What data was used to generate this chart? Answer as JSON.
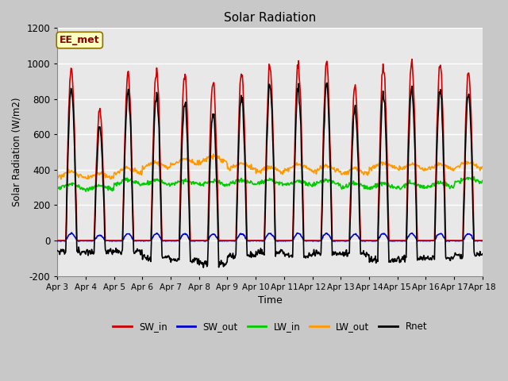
{
  "title": "Solar Radiation",
  "xlabel": "Time",
  "ylabel": "Solar Radiation (W/m2)",
  "ylim": [
    -200,
    1200
  ],
  "xlim": [
    0,
    360
  ],
  "fig_bg_color": "#c8c8c8",
  "plot_bg_color": "#e8e8e8",
  "grid_color": "#ffffff",
  "series": {
    "SW_in": {
      "color": "#cc0000",
      "lw": 1.2
    },
    "SW_out": {
      "color": "#0000cc",
      "lw": 1.2
    },
    "LW_in": {
      "color": "#00cc00",
      "lw": 1.2
    },
    "LW_out": {
      "color": "#ff9900",
      "lw": 1.2
    },
    "Rnet": {
      "color": "#000000",
      "lw": 1.2
    }
  },
  "xtick_labels": [
    "Apr 3",
    "Apr 4",
    "Apr 5",
    "Apr 6",
    "Apr 7",
    "Apr 8",
    "Apr 9",
    "Apr 10",
    "Apr 11",
    "Apr 12",
    "Apr 13",
    "Apr 14",
    "Apr 15",
    "Apr 16",
    "Apr 17",
    "Apr 18"
  ],
  "xtick_positions": [
    0,
    24,
    48,
    72,
    96,
    120,
    144,
    168,
    192,
    216,
    240,
    264,
    288,
    312,
    336,
    360
  ],
  "ytick_labels": [
    "-200",
    "0",
    "200",
    "400",
    "600",
    "800",
    "1000",
    "1200"
  ],
  "ytick_positions": [
    -200,
    0,
    200,
    400,
    600,
    800,
    1000,
    1200
  ],
  "annotation_text": "EE_met",
  "n_days": 15,
  "pts_per_day": 48,
  "sw_in_peaks": [
    980,
    730,
    940,
    950,
    940,
    880,
    950,
    990,
    990,
    990,
    870,
    980,
    1000,
    1000,
    950
  ],
  "lw_in_base": [
    305,
    300,
    330,
    330,
    330,
    325,
    330,
    330,
    325,
    330,
    310,
    310,
    310,
    315,
    340
  ],
  "lw_out_base": [
    375,
    365,
    395,
    425,
    445,
    460,
    420,
    400,
    415,
    405,
    390,
    425,
    415,
    415,
    425
  ]
}
